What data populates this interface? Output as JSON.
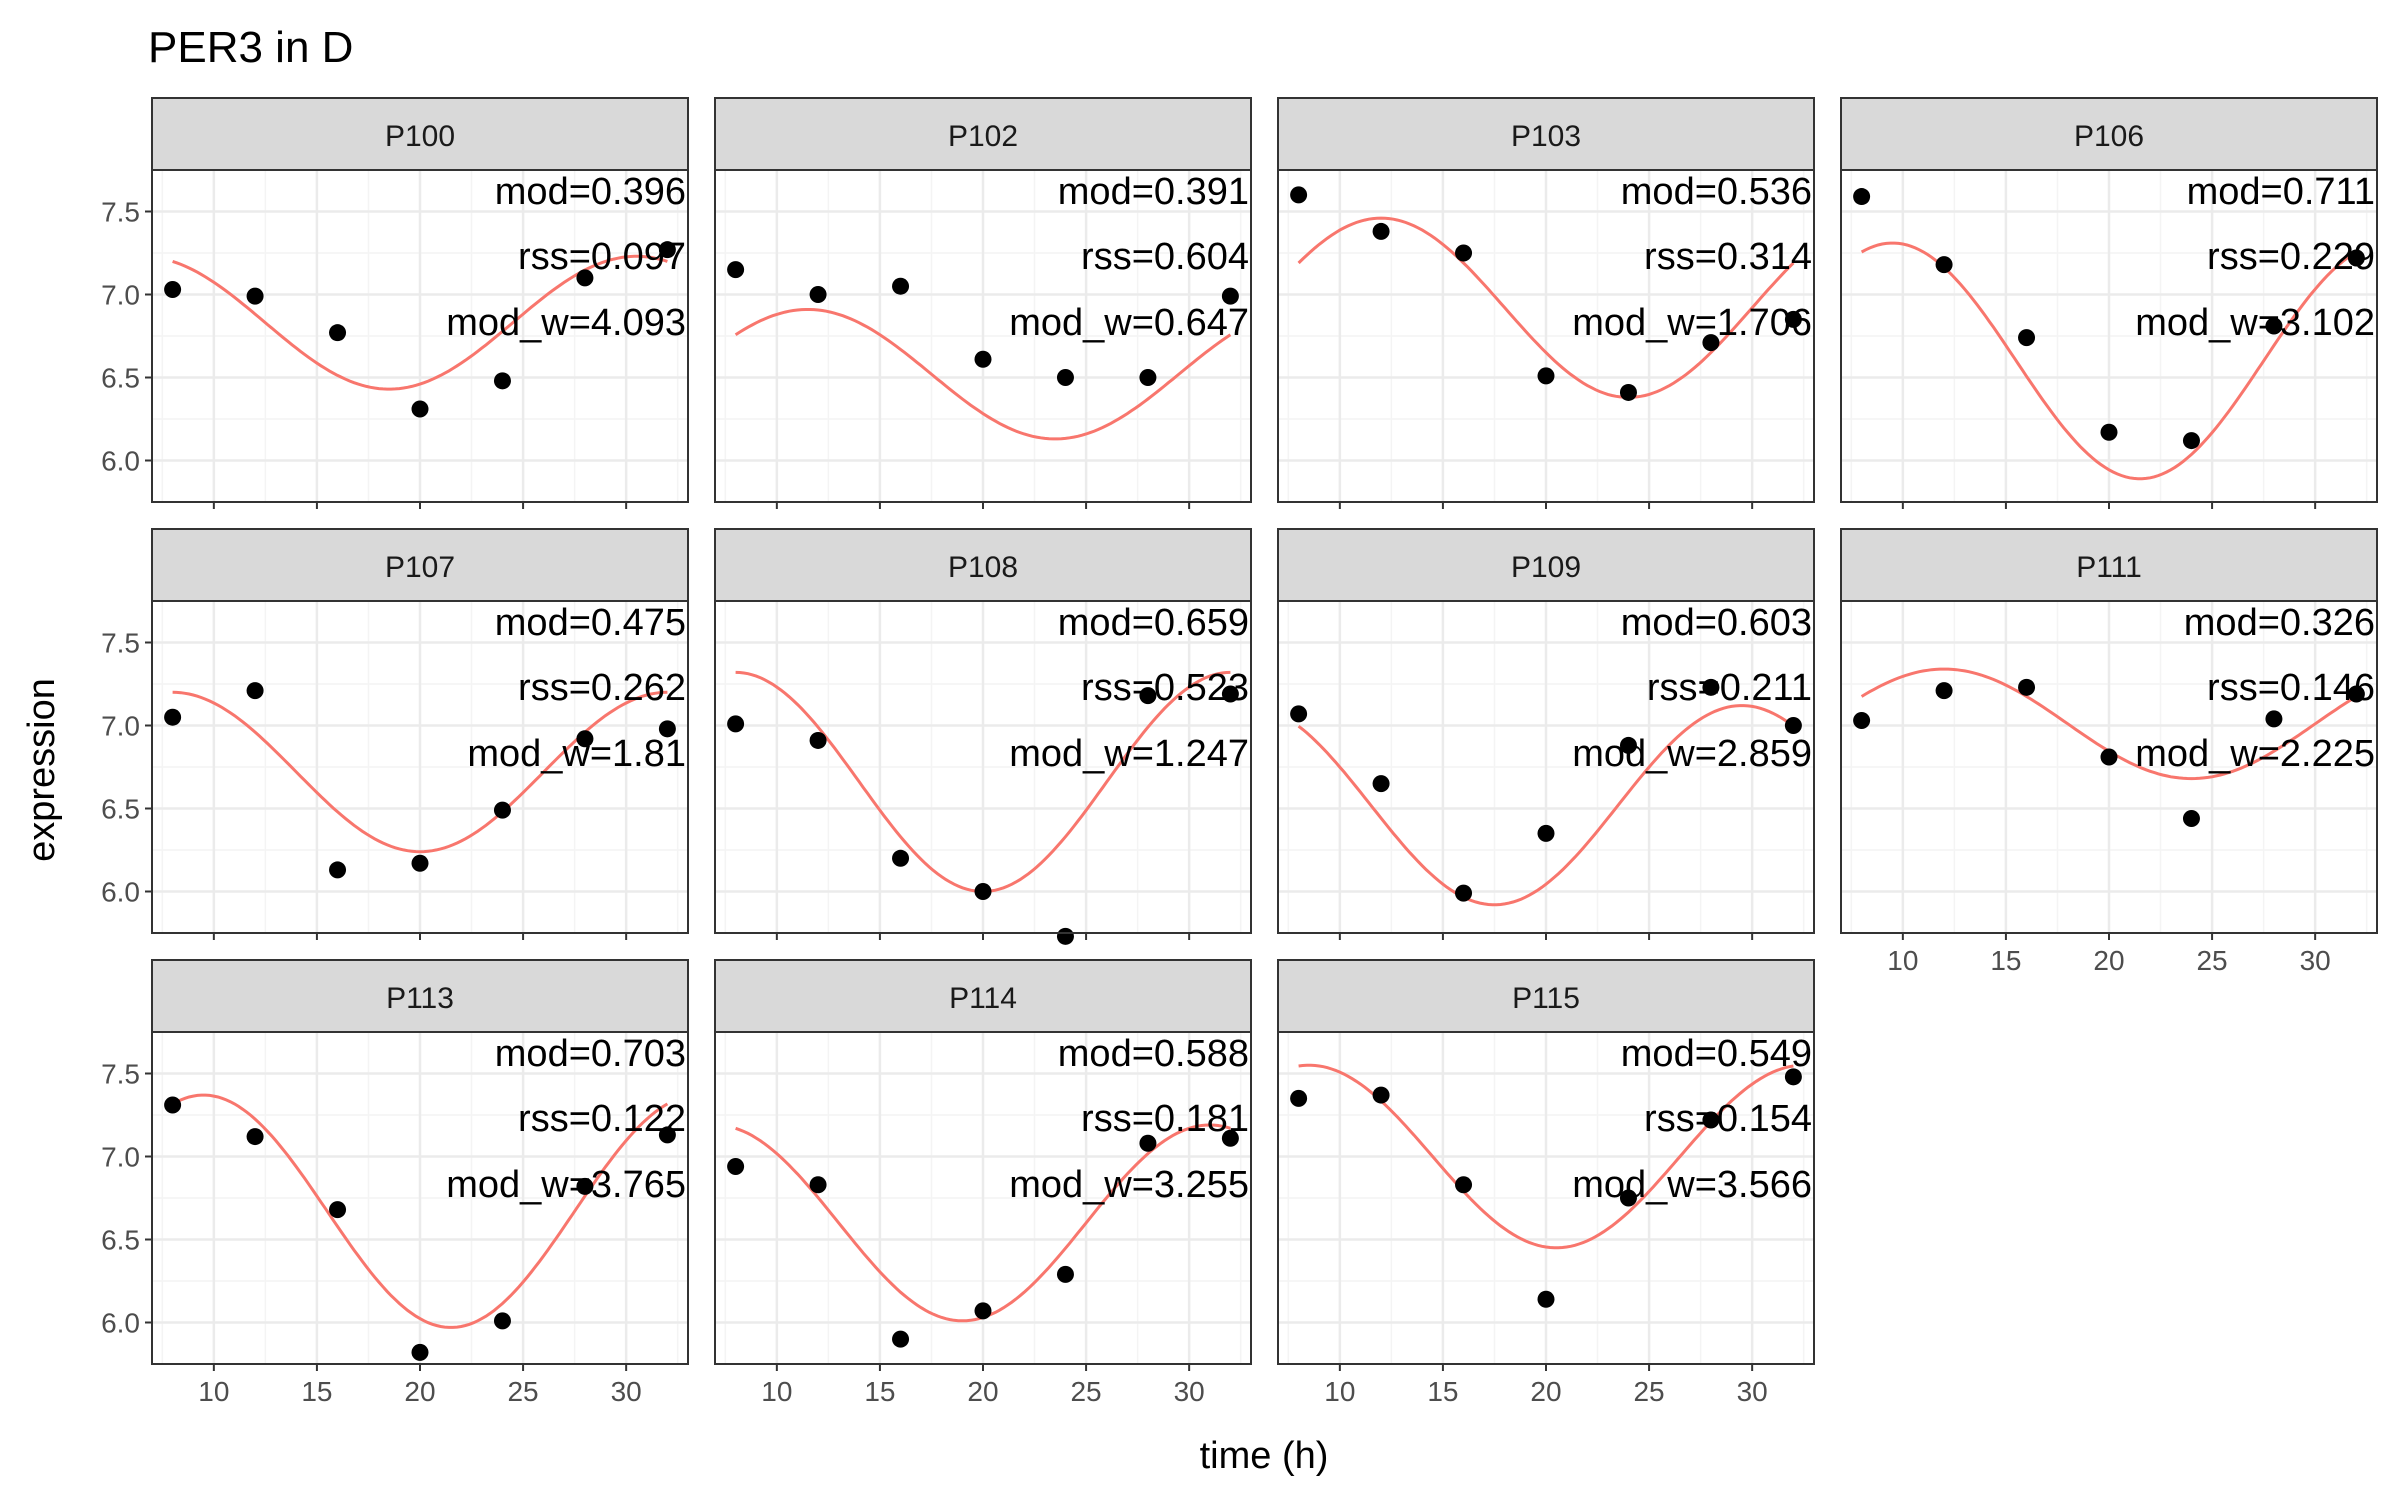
{
  "title": "PER3 in D",
  "colors": {
    "fit_line": "#F8766D",
    "point": "#000000",
    "grid_major": "#EBEBEB",
    "grid_minor": "#F4F4F4",
    "strip_fill": "#D9D9D9",
    "panel_border": "#333333",
    "axis_text": "#4D4D4D",
    "text": "#000000"
  },
  "chart_data": {
    "type": "scatter",
    "title": "PER3 in D",
    "xlabel": "time (h)",
    "ylabel": "expression",
    "xlim": [
      7.0,
      33.0
    ],
    "ylim": [
      5.75,
      7.75
    ],
    "x_ticks": [
      10,
      15,
      20,
      25,
      30
    ],
    "y_ticks": [
      6.0,
      6.5,
      7.0,
      7.5
    ],
    "x_tick_labels": [
      "10",
      "15",
      "20",
      "25",
      "30"
    ],
    "y_tick_labels": [
      "6.0",
      "6.5",
      "7.0",
      "7.5"
    ],
    "grid": true,
    "series_style": {
      "points": "black filled circles",
      "fit": "salmon cosine curve"
    },
    "panels": [
      {
        "name": "P100",
        "mod": "mod=0.396",
        "rss": "rss=0.097",
        "mod_w": "mod_w=4.093",
        "x": [
          8,
          12,
          16,
          20,
          24,
          28,
          32
        ],
        "y": [
          7.03,
          6.99,
          6.77,
          6.31,
          6.48,
          7.1,
          7.27
        ],
        "fit": {
          "mean": 6.83,
          "amp": 0.4,
          "peak": 6.5
        }
      },
      {
        "name": "P102",
        "mod": "mod=0.391",
        "rss": "rss=0.604",
        "mod_w": "mod_w=0.647",
        "x": [
          8,
          12,
          16,
          20,
          24,
          28,
          32
        ],
        "y": [
          7.15,
          7.0,
          7.05,
          6.61,
          6.5,
          6.5,
          6.99
        ],
        "fit": {
          "mean": 6.52,
          "amp": 0.39,
          "peak": 11.5
        }
      },
      {
        "name": "P103",
        "mod": "mod=0.536",
        "rss": "rss=0.314",
        "mod_w": "mod_w=1.706",
        "x": [
          8,
          12,
          16,
          20,
          24,
          28,
          32
        ],
        "y": [
          7.6,
          7.38,
          7.25,
          6.51,
          6.41,
          6.71,
          6.85
        ],
        "fit": {
          "mean": 6.92,
          "amp": 0.54,
          "peak": 12.0
        }
      },
      {
        "name": "P106",
        "mod": "mod=0.711",
        "rss": "rss=0.229",
        "mod_w": "mod_w=3.102",
        "x": [
          8,
          12,
          16,
          20,
          24,
          28,
          32
        ],
        "y": [
          7.59,
          7.18,
          6.74,
          6.17,
          6.12,
          6.81,
          7.22
        ],
        "fit": {
          "mean": 6.6,
          "amp": 0.71,
          "peak": 9.5
        }
      },
      {
        "name": "P107",
        "mod": "mod=0.475",
        "rss": "rss=0.262",
        "mod_w": "mod_w=1.81",
        "x": [
          8,
          12,
          16,
          20,
          24,
          28,
          32
        ],
        "y": [
          7.05,
          7.21,
          6.13,
          6.17,
          6.49,
          6.92,
          6.98
        ],
        "fit": {
          "mean": 6.72,
          "amp": 0.48,
          "peak": 8.0
        }
      },
      {
        "name": "P108",
        "mod": "mod=0.659",
        "rss": "rss=0.523",
        "mod_w": "mod_w=1.247",
        "x": [
          8,
          12,
          16,
          20,
          24,
          28,
          32
        ],
        "y": [
          7.01,
          6.91,
          6.2,
          6.0,
          5.73,
          7.18,
          7.19
        ],
        "fit": {
          "mean": 6.66,
          "amp": 0.66,
          "peak": 8.0
        }
      },
      {
        "name": "P109",
        "mod": "mod=0.603",
        "rss": "rss=0.211",
        "mod_w": "mod_w=2.859",
        "x": [
          8,
          12,
          16,
          20,
          24,
          28,
          32
        ],
        "y": [
          7.07,
          6.65,
          5.99,
          6.35,
          6.88,
          7.23,
          7.0
        ],
        "fit": {
          "mean": 6.52,
          "amp": 0.6,
          "peak": 29.5
        }
      },
      {
        "name": "P111",
        "mod": "mod=0.326",
        "rss": "rss=0.146",
        "mod_w": "mod_w=2.225",
        "x": [
          8,
          12,
          16,
          20,
          24,
          28,
          32
        ],
        "y": [
          7.03,
          7.21,
          7.23,
          6.81,
          6.44,
          7.04,
          7.19
        ],
        "fit": {
          "mean": 7.01,
          "amp": 0.33,
          "peak": 12.0
        }
      },
      {
        "name": "P113",
        "mod": "mod=0.703",
        "rss": "rss=0.122",
        "mod_w": "mod_w=3.765",
        "x": [
          8,
          12,
          16,
          20,
          24,
          28,
          32
        ],
        "y": [
          7.31,
          7.12,
          6.68,
          5.82,
          6.01,
          6.82,
          7.13
        ],
        "fit": {
          "mean": 6.67,
          "amp": 0.7,
          "peak": 9.5
        }
      },
      {
        "name": "P114",
        "mod": "mod=0.588",
        "rss": "rss=0.181",
        "mod_w": "mod_w=3.255",
        "x": [
          8,
          12,
          16,
          20,
          24,
          28,
          32
        ],
        "y": [
          6.94,
          6.83,
          5.9,
          6.07,
          6.29,
          7.08,
          7.11
        ],
        "fit": {
          "mean": 6.6,
          "amp": 0.59,
          "peak": 31.0
        }
      },
      {
        "name": "P115",
        "mod": "mod=0.549",
        "rss": "rss=0.154",
        "mod_w": "mod_w=3.566",
        "x": [
          8,
          12,
          16,
          20,
          24,
          28,
          32
        ],
        "y": [
          7.35,
          7.37,
          6.83,
          6.14,
          6.75,
          7.22,
          7.48
        ],
        "fit": {
          "mean": 7.0,
          "amp": 0.55,
          "peak": 8.5
        }
      }
    ]
  }
}
